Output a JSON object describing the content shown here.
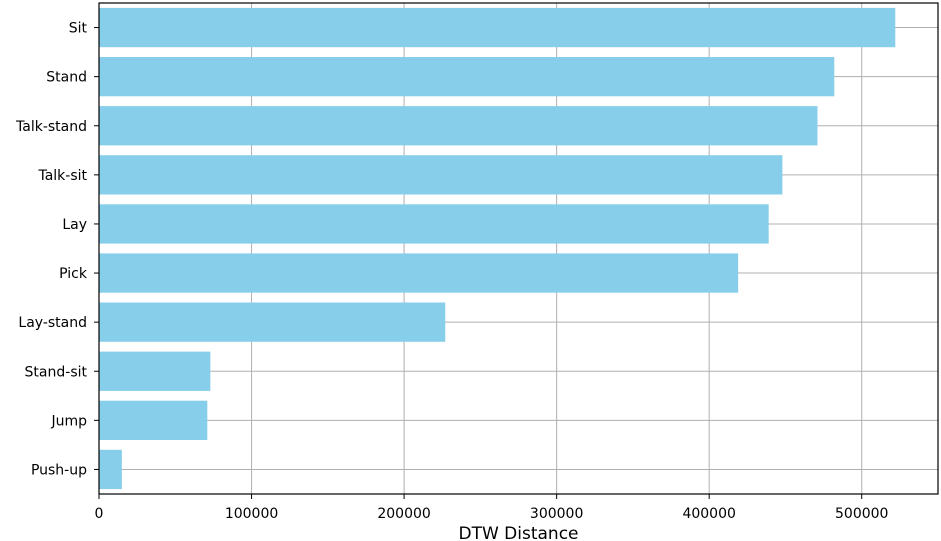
{
  "chart_data": {
    "type": "bar",
    "orientation": "horizontal",
    "categories": [
      "Sit",
      "Stand",
      "Talk-stand",
      "Talk-sit",
      "Lay",
      "Pick",
      "Lay-stand",
      "Stand-sit",
      "Jump",
      "Push-up"
    ],
    "values": [
      522000,
      482000,
      471000,
      448000,
      439000,
      419000,
      227000,
      73000,
      71000,
      15000
    ],
    "xlabel": "DTW Distance",
    "ylabel": "",
    "xlim": [
      0,
      550000
    ],
    "xticks": [
      0,
      100000,
      200000,
      300000,
      400000,
      500000
    ],
    "xtick_labels": [
      "0",
      "100000",
      "200000",
      "300000",
      "400000",
      "500000"
    ],
    "grid": true,
    "bar_color": "#87CEEB",
    "grid_color": "#b0b0b0"
  }
}
